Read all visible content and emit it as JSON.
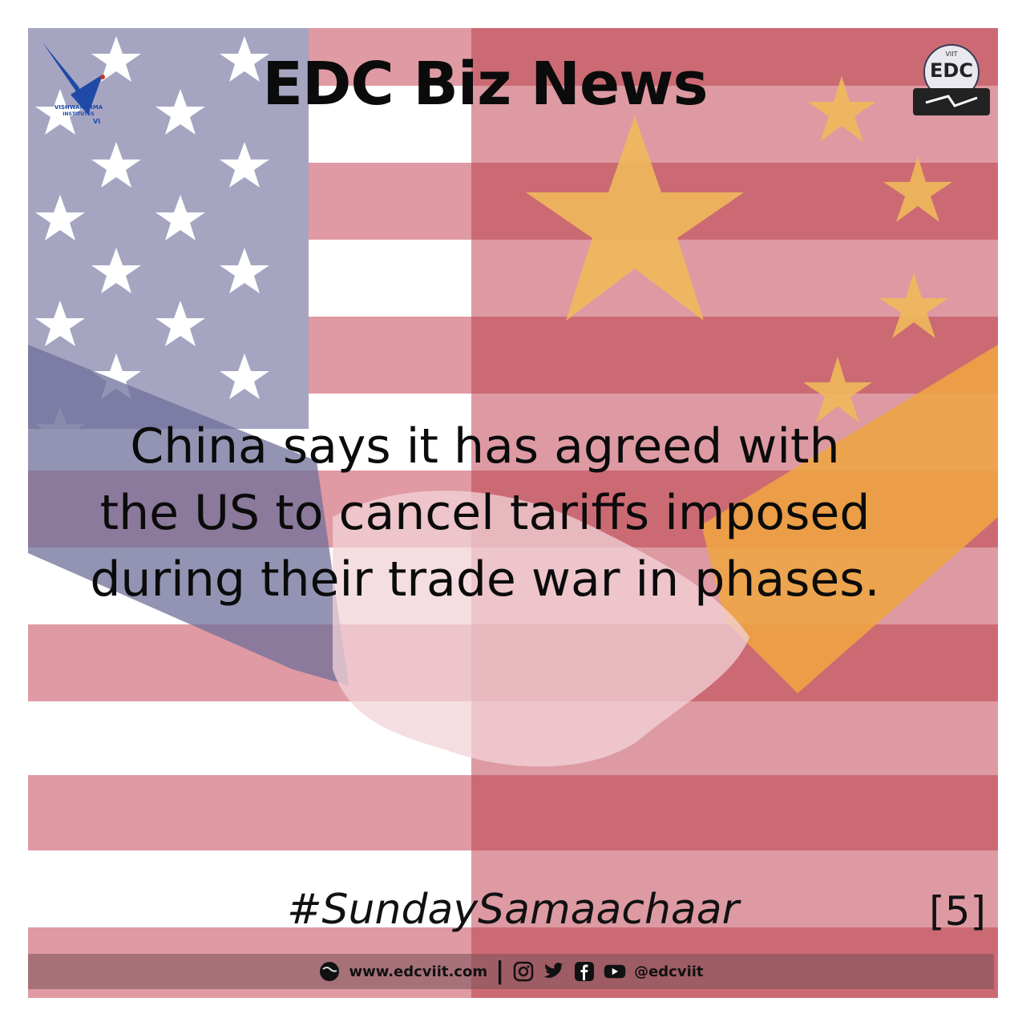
{
  "header": {
    "title": "EDC Biz News",
    "left_logo": {
      "text_top": "VISHWAKARMA",
      "text_mid": "INSTITUTES",
      "text_vi": "VI"
    },
    "right_logo": {
      "text_small": "VIIT",
      "text_big": "EDC"
    }
  },
  "headline": {
    "lines": [
      "China says it has agreed with",
      "the US to cancel tariffs imposed",
      "during their trade war in phases."
    ]
  },
  "hashtag": "#SundaySamaachaar",
  "page_number": "[5]",
  "footer": {
    "website": "www.edcviit.com",
    "separator": "|",
    "handle": "@edcviit",
    "icons": [
      "globe-icon",
      "instagram-icon",
      "twitter-icon",
      "facebook-icon",
      "youtube-icon"
    ]
  },
  "colors": {
    "us_blue": "#a5a5c2",
    "us_red_stripe": "#e09aa3",
    "cn_red": "#cc6a74",
    "cn_star": "#f0b95a",
    "text": "#0b0b0b"
  }
}
